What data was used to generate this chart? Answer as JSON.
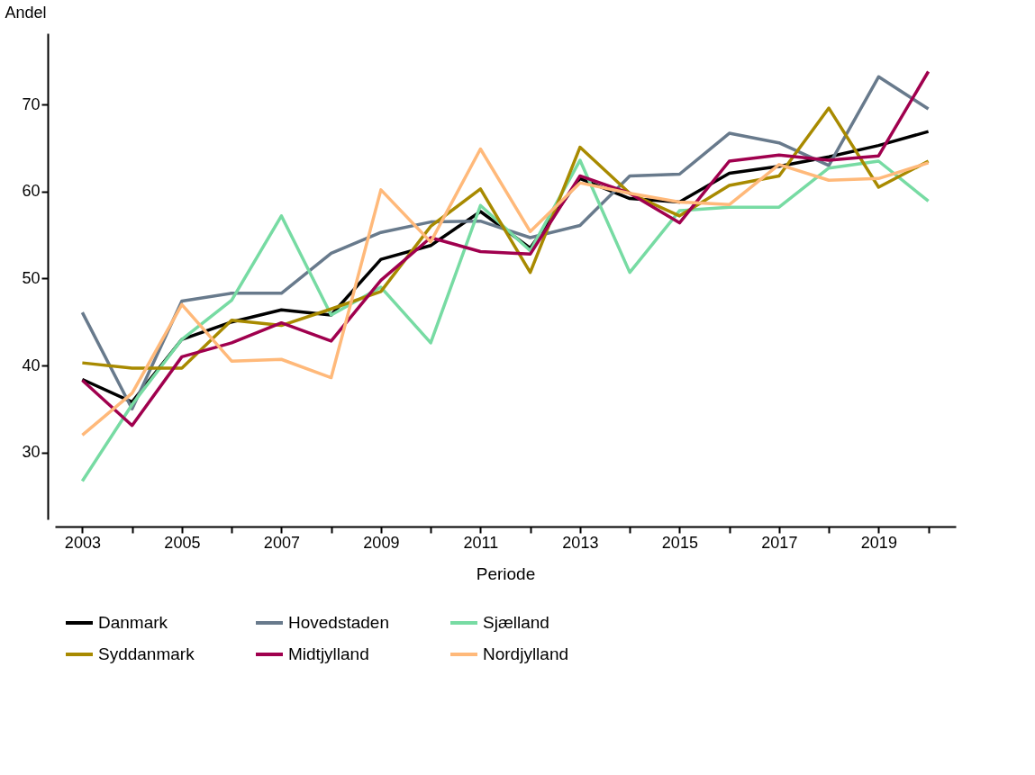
{
  "chart_data": {
    "type": "line",
    "xlabel": "Periode",
    "ylabel": "Andel",
    "x": [
      2003,
      2004,
      2005,
      2006,
      2007,
      2008,
      2009,
      2010,
      2011,
      2012,
      2013,
      2014,
      2015,
      2016,
      2017,
      2018,
      2019,
      2020
    ],
    "xlim": [
      2002.45,
      2020.55
    ],
    "xticks": [
      2003,
      {
        "value": 2004,
        "label": null
      },
      2005,
      {
        "value": 2006,
        "label": null
      },
      2007,
      {
        "value": 2008,
        "label": null
      },
      2009,
      {
        "value": 2010,
        "label": null
      },
      2011,
      {
        "value": 2012,
        "label": null
      },
      2013,
      {
        "value": 2014,
        "label": null
      },
      2015,
      {
        "value": 2016,
        "label": null
      },
      2017,
      {
        "value": 2018,
        "label": null
      },
      2019,
      {
        "value": 2020,
        "label": null
      }
    ],
    "ylim": [
      22.3,
      78.2
    ],
    "yticks": [
      30,
      40,
      50,
      60,
      70
    ],
    "grid": false,
    "legend": "bottom",
    "marker": "none",
    "line_style": "solid",
    "series": [
      {
        "name": "Danmark",
        "color": "#000000",
        "values": [
          38.4,
          35.8,
          43,
          45,
          46.4,
          45.8,
          52.2,
          53.8,
          57.7,
          53.5,
          61.5,
          59.2,
          58.8,
          62.1,
          62.9,
          64,
          65.3,
          66.9
        ]
      },
      {
        "name": "Hovedstaden",
        "color": "#687a8c",
        "values": [
          46.1,
          35,
          47.4,
          48.3,
          48.3,
          52.9,
          55.3,
          56.5,
          56.6,
          54.7,
          56.1,
          61.8,
          62.0,
          66.7,
          65.6,
          63.0,
          73.2,
          69.5
        ]
      },
      {
        "name": "Sjælland",
        "color": "#77dba3",
        "values": [
          26.7,
          35.5,
          43,
          47.5,
          57.2,
          45.8,
          49,
          42.6,
          58.4,
          53.2,
          63.6,
          50.7,
          57.8,
          58.2,
          58.2,
          62.7,
          63.5,
          58.9
        ]
      },
      {
        "name": "Syddanmark",
        "color": "#a88a00",
        "values": [
          40.3,
          39.7,
          39.7,
          45.2,
          44.6,
          46.5,
          48.5,
          56,
          60.3,
          50.7,
          65.1,
          59.8,
          57.2,
          60.7,
          61.8,
          69.6,
          60.5,
          63.5
        ]
      },
      {
        "name": "Midtjylland",
        "color": "#a0004e",
        "values": [
          38.3,
          33.1,
          41,
          42.6,
          44.9,
          42.8,
          49.8,
          54.7,
          53.1,
          52.8,
          61.8,
          59.8,
          56.4,
          63.5,
          64.2,
          63.6,
          64.1,
          73.8
        ]
      },
      {
        "name": "Nordjylland",
        "color": "#ffb97a",
        "values": [
          32,
          36.8,
          47,
          40.5,
          40.7,
          38.6,
          60.2,
          54.2,
          64.9,
          55.4,
          61.0,
          59.8,
          58.8,
          58.5,
          63.1,
          61.3,
          61.5,
          63.3
        ]
      }
    ]
  }
}
